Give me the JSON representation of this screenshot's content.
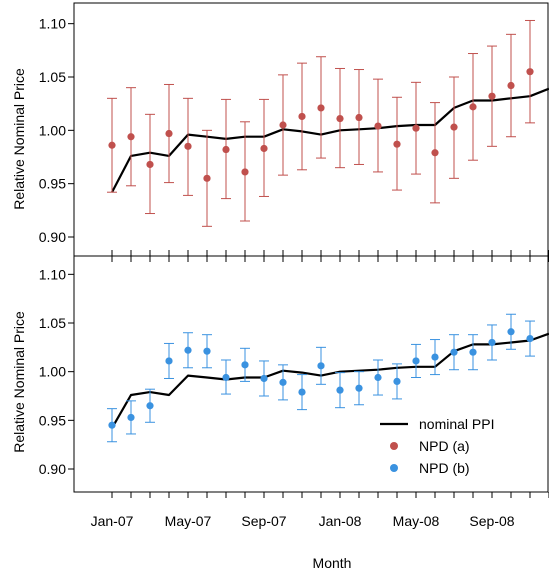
{
  "chart_data": [
    {
      "type": "line",
      "panel": "top",
      "ylabel": "Relative Nominal Price",
      "ylim": [
        0.88,
        1.11
      ],
      "yticks": [
        "0.90",
        "0.95",
        "1.00",
        "1.05",
        "1.10"
      ],
      "x_categories": [
        "Jan-07",
        "Feb-07",
        "Mar-07",
        "Apr-07",
        "May-07",
        "Jun-07",
        "Jul-07",
        "Aug-07",
        "Sep-07",
        "Oct-07",
        "Nov-07",
        "Dec-07",
        "Jan-08",
        "Feb-08",
        "Mar-08",
        "Apr-08",
        "May-08",
        "Jun-08",
        "Jul-08",
        "Aug-08",
        "Sep-08",
        "Oct-08",
        "Nov-08",
        "Dec-08"
      ],
      "series": [
        {
          "name": "nominal PPI",
          "kind": "line",
          "color": "#000000",
          "values": [
            0.942,
            0.976,
            0.979,
            0.976,
            0.996,
            0.994,
            0.992,
            0.994,
            0.994,
            1.001,
            0.999,
            0.996,
            1.0,
            1.001,
            1.002,
            1.004,
            1.005,
            1.005,
            1.021,
            1.028,
            1.028,
            1.03,
            1.032,
            1.039
          ]
        },
        {
          "name": "NPD (a)",
          "kind": "points_with_errorbars",
          "color": "#c0504d",
          "values": [
            0.986,
            0.994,
            0.968,
            0.997,
            0.985,
            0.955,
            0.982,
            0.961,
            0.983,
            1.005,
            1.013,
            1.021,
            1.011,
            1.012,
            1.004,
            0.987,
            1.002,
            0.979,
            1.003,
            1.022,
            1.032,
            1.042,
            1.055
          ],
          "lower": [
            0.942,
            0.948,
            0.922,
            0.951,
            0.939,
            0.91,
            0.936,
            0.915,
            0.938,
            0.958,
            0.963,
            0.974,
            0.965,
            0.968,
            0.961,
            0.944,
            0.959,
            0.932,
            0.955,
            0.972,
            0.985,
            0.994,
            1.007
          ],
          "upper": [
            1.03,
            1.04,
            1.015,
            1.043,
            1.03,
            1.0,
            1.029,
            1.008,
            1.029,
            1.052,
            1.063,
            1.069,
            1.058,
            1.057,
            1.048,
            1.031,
            1.045,
            1.026,
            1.05,
            1.072,
            1.079,
            1.09,
            1.103
          ]
        }
      ]
    },
    {
      "type": "line",
      "panel": "bottom",
      "xlabel": "Month",
      "ylabel": "Relative Nominal Price",
      "ylim": [
        0.88,
        1.11
      ],
      "yticks": [
        "0.90",
        "0.95",
        "1.00",
        "1.05",
        "1.10"
      ],
      "xticks": [
        "Jan-07",
        "May-07",
        "Sep-07",
        "Jan-08",
        "May-08",
        "Sep-08"
      ],
      "x_categories": [
        "Jan-07",
        "Feb-07",
        "Mar-07",
        "Apr-07",
        "May-07",
        "Jun-07",
        "Jul-07",
        "Aug-07",
        "Sep-07",
        "Oct-07",
        "Nov-07",
        "Dec-07",
        "Jan-08",
        "Feb-08",
        "Mar-08",
        "Apr-08",
        "May-08",
        "Jun-08",
        "Jul-08",
        "Aug-08",
        "Sep-08",
        "Oct-08",
        "Nov-08",
        "Dec-08"
      ],
      "legend_position": "bottom-right",
      "legend": [
        {
          "label": "nominal PPI",
          "marker": "line",
          "color": "#000000"
        },
        {
          "label": "NPD (a)",
          "marker": "point",
          "color": "#c0504d"
        },
        {
          "label": "NPD (b)",
          "marker": "point",
          "color": "#3a92e0"
        }
      ],
      "series": [
        {
          "name": "nominal PPI",
          "kind": "line",
          "color": "#000000",
          "values": [
            0.942,
            0.976,
            0.979,
            0.976,
            0.996,
            0.994,
            0.992,
            0.994,
            0.994,
            1.001,
            0.999,
            0.996,
            1.0,
            1.001,
            1.002,
            1.004,
            1.005,
            1.005,
            1.021,
            1.028,
            1.028,
            1.03,
            1.032,
            1.039
          ]
        },
        {
          "name": "NPD (b)",
          "kind": "points_with_errorbars",
          "color": "#3a92e0",
          "values": [
            0.945,
            0.953,
            0.965,
            1.011,
            1.022,
            1.021,
            0.994,
            1.007,
            0.993,
            0.989,
            0.979,
            1.006,
            0.981,
            0.983,
            0.994,
            0.99,
            1.011,
            1.015,
            1.02,
            1.02,
            1.03,
            1.041,
            1.034
          ],
          "lower": [
            0.928,
            0.936,
            0.948,
            0.993,
            1.004,
            1.004,
            0.977,
            0.99,
            0.975,
            0.971,
            0.961,
            0.987,
            0.963,
            0.966,
            0.976,
            0.972,
            0.994,
            0.997,
            1.002,
            1.002,
            1.012,
            1.023,
            1.016
          ],
          "upper": [
            0.962,
            0.97,
            0.982,
            1.029,
            1.04,
            1.038,
            1.012,
            1.024,
            1.011,
            1.007,
            0.997,
            1.025,
            0.999,
            1.0,
            1.012,
            1.008,
            1.028,
            1.033,
            1.038,
            1.038,
            1.048,
            1.059,
            1.052
          ]
        }
      ]
    }
  ]
}
